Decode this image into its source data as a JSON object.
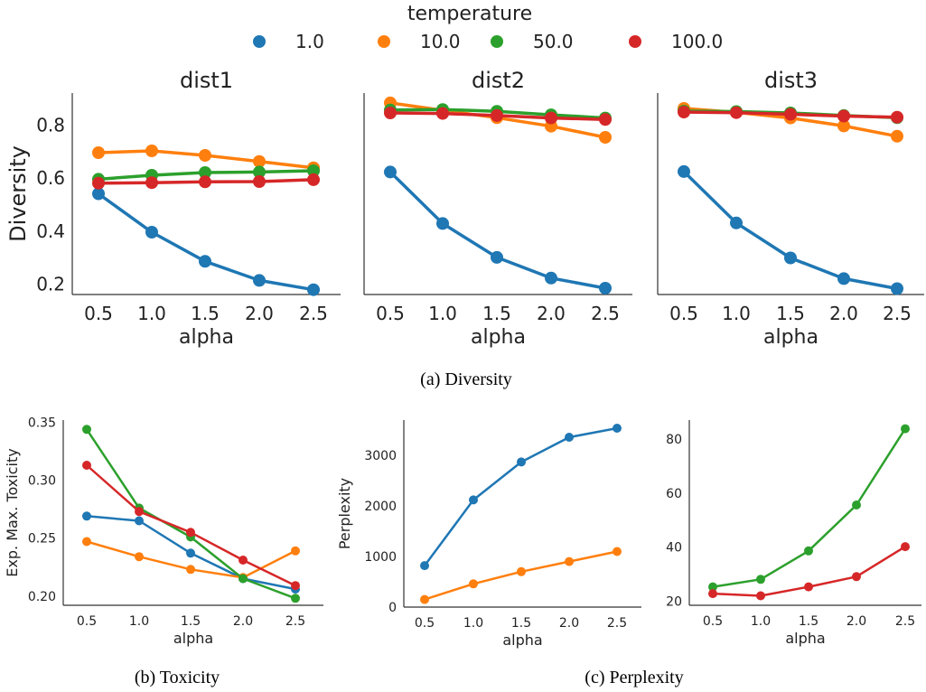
{
  "legend": {
    "title": "temperature",
    "placement": "top-center",
    "entries": [
      {
        "label": "1.0",
        "color": "#1f77b4"
      },
      {
        "label": "10.0",
        "color": "#ff7f0e"
      },
      {
        "label": "50.0",
        "color": "#2ca02c"
      },
      {
        "label": "100.0",
        "color": "#d62728"
      }
    ]
  },
  "captions": {
    "a": "(a) Diversity",
    "b": "(b) Toxicity",
    "c": "(c) Perplexity"
  },
  "chart_data": [
    {
      "type": "line",
      "title": "dist1",
      "xlabel": "alpha",
      "ylabel": "Diversity",
      "categories": [
        "0.5",
        "1.0",
        "1.5",
        "2.0",
        "2.5"
      ],
      "ylim": [
        0.16,
        0.92
      ],
      "yticks": [
        "0.2",
        "0.4",
        "0.6",
        "0.8"
      ],
      "series": [
        {
          "name": "1.0",
          "color": "#1f77b4",
          "values": [
            0.54,
            0.395,
            0.285,
            0.213,
            0.178
          ]
        },
        {
          "name": "10.0",
          "color": "#ff7f0e",
          "values": [
            0.695,
            0.702,
            0.685,
            0.662,
            0.638
          ]
        },
        {
          "name": "50.0",
          "color": "#2ca02c",
          "values": [
            0.595,
            0.61,
            0.62,
            0.622,
            0.627
          ]
        },
        {
          "name": "100.0",
          "color": "#d62728",
          "values": [
            0.58,
            0.582,
            0.585,
            0.586,
            0.593
          ]
        }
      ]
    },
    {
      "type": "line",
      "title": "dist2",
      "xlabel": "alpha",
      "ylabel": "",
      "categories": [
        "0.5",
        "1.0",
        "1.5",
        "2.0",
        "2.5"
      ],
      "ylim": [
        0.16,
        0.92
      ],
      "yticks": [],
      "series": [
        {
          "name": "1.0",
          "color": "#1f77b4",
          "values": [
            0.622,
            0.428,
            0.3,
            0.222,
            0.184
          ]
        },
        {
          "name": "10.0",
          "color": "#ff7f0e",
          "values": [
            0.883,
            0.855,
            0.827,
            0.795,
            0.753
          ]
        },
        {
          "name": "50.0",
          "color": "#2ca02c",
          "values": [
            0.856,
            0.858,
            0.851,
            0.838,
            0.826
          ]
        },
        {
          "name": "100.0",
          "color": "#d62728",
          "values": [
            0.845,
            0.843,
            0.835,
            0.826,
            0.82
          ]
        }
      ]
    },
    {
      "type": "line",
      "title": "dist3",
      "xlabel": "alpha",
      "ylabel": "",
      "categories": [
        "0.5",
        "1.0",
        "1.5",
        "2.0",
        "2.5"
      ],
      "ylim": [
        0.16,
        0.92
      ],
      "yticks": [],
      "series": [
        {
          "name": "1.0",
          "color": "#1f77b4",
          "values": [
            0.624,
            0.43,
            0.298,
            0.22,
            0.182
          ]
        },
        {
          "name": "10.0",
          "color": "#ff7f0e",
          "values": [
            0.862,
            0.847,
            0.826,
            0.796,
            0.757
          ]
        },
        {
          "name": "50.0",
          "color": "#2ca02c",
          "values": [
            0.852,
            0.85,
            0.845,
            0.835,
            0.827
          ]
        },
        {
          "name": "100.0",
          "color": "#d62728",
          "values": [
            0.848,
            0.846,
            0.84,
            0.833,
            0.829
          ]
        }
      ]
    },
    {
      "type": "line",
      "title": "",
      "xlabel": "alpha",
      "ylabel": "Exp. Max. Toxicity",
      "categories": [
        "0.5",
        "1.0",
        "1.5",
        "2.0",
        "2.5"
      ],
      "ylim": [
        0.192,
        0.352
      ],
      "yticks": [
        "0.20",
        "0.25",
        "0.30",
        "0.35"
      ],
      "series": [
        {
          "name": "1.0",
          "color": "#1f77b4",
          "values": [
            0.269,
            0.265,
            0.237,
            0.215,
            0.206
          ]
        },
        {
          "name": "10.0",
          "color": "#ff7f0e",
          "values": [
            0.247,
            0.234,
            0.223,
            0.216,
            0.239
          ]
        },
        {
          "name": "50.0",
          "color": "#2ca02c",
          "values": [
            0.344,
            0.276,
            0.251,
            0.215,
            0.198
          ]
        },
        {
          "name": "100.0",
          "color": "#d62728",
          "values": [
            0.313,
            0.273,
            0.255,
            0.231,
            0.209
          ]
        }
      ]
    },
    {
      "type": "line",
      "title": "",
      "xlabel": "alpha",
      "ylabel": "Perplexity",
      "categories": [
        "0.5",
        "1.0",
        "1.5",
        "2.0",
        "2.5"
      ],
      "ylim": [
        0,
        3700
      ],
      "yticks": [
        "0",
        "1000",
        "2000",
        "3000"
      ],
      "series": [
        {
          "name": "1.0",
          "color": "#1f77b4",
          "values": [
            820,
            2120,
            2870,
            3360,
            3540
          ]
        },
        {
          "name": "10.0",
          "color": "#ff7f0e",
          "values": [
            150,
            460,
            700,
            900,
            1100
          ]
        }
      ]
    },
    {
      "type": "line",
      "title": "",
      "xlabel": "alpha",
      "ylabel": "",
      "categories": [
        "0.5",
        "1.0",
        "1.5",
        "2.0",
        "2.5"
      ],
      "ylim": [
        18.5,
        87
      ],
      "yticks": [
        "20",
        "40",
        "60",
        "80"
      ],
      "series": [
        {
          "name": "50.0",
          "color": "#2ca02c",
          "values": [
            25.3,
            28.1,
            38.6,
            55.6,
            83.8
          ]
        },
        {
          "name": "100.0",
          "color": "#d62728",
          "values": [
            22.8,
            22.0,
            25.3,
            29.1,
            40.2
          ]
        }
      ]
    }
  ]
}
